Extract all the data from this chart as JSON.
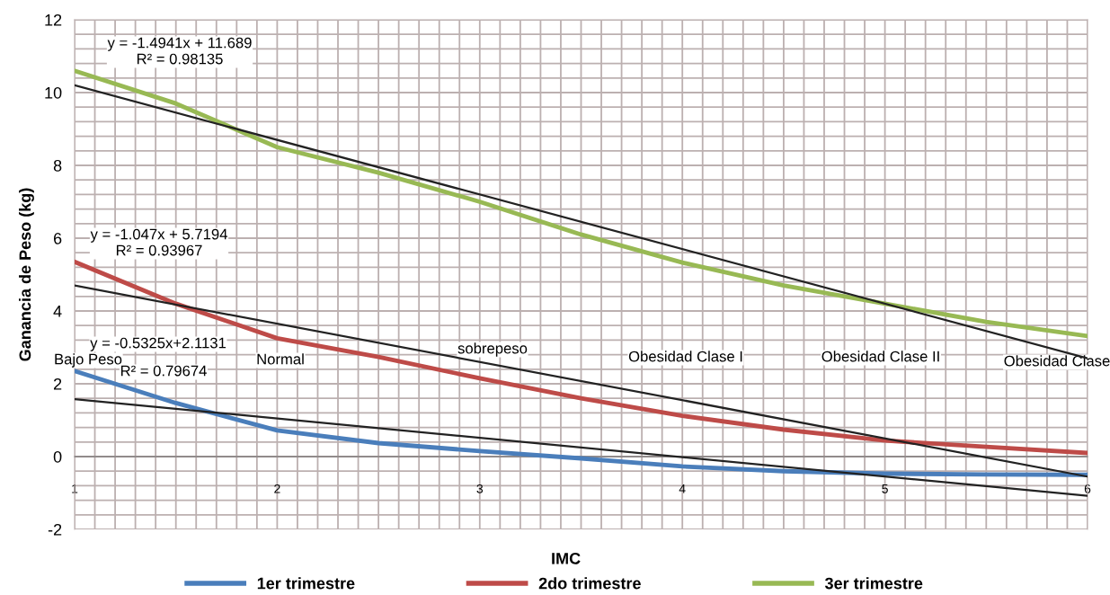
{
  "chart_data": {
    "type": "line",
    "xlabel": "IMC",
    "ylabel": "Ganancia de Peso (kg)",
    "xlim": [
      1,
      6
    ],
    "ylim": [
      -2,
      12
    ],
    "xticks": [
      1,
      2,
      3,
      4,
      5,
      6
    ],
    "yticks": [
      -2,
      0,
      2,
      4,
      6,
      8,
      10,
      12
    ],
    "grid": true,
    "legend": "bottom",
    "series": [
      {
        "name": "1er trimestre",
        "color": "#4a7ebb",
        "x": [
          1,
          1.5,
          2,
          2.5,
          3,
          3.5,
          4,
          4.5,
          5,
          5.5,
          6
        ],
        "values": [
          2.35,
          1.47,
          0.72,
          0.37,
          0.15,
          -0.05,
          -0.27,
          -0.4,
          -0.47,
          -0.49,
          -0.5
        ]
      },
      {
        "name": "2do trimestre",
        "color": "#be4b48",
        "x": [
          1,
          1.5,
          2,
          2.5,
          3,
          3.5,
          4,
          4.5,
          5,
          5.5,
          6
        ],
        "values": [
          5.35,
          4.2,
          3.25,
          2.74,
          2.15,
          1.6,
          1.12,
          0.74,
          0.44,
          0.27,
          0.1
        ]
      },
      {
        "name": "3er trimestre",
        "color": "#98b954",
        "x": [
          1,
          1.5,
          2,
          2.5,
          3,
          3.5,
          4,
          4.5,
          5,
          5.5,
          6
        ],
        "values": [
          10.6,
          9.7,
          8.5,
          7.8,
          7.0,
          6.1,
          5.33,
          4.7,
          4.2,
          3.7,
          3.31
        ]
      },
      {
        "color": "#222222",
        "x": [
          1,
          6
        ],
        "values": [
          1.58,
          -1.08
        ]
      },
      {
        "color": "#222222",
        "x": [
          1,
          6
        ],
        "values": [
          4.7,
          -0.55
        ]
      },
      {
        "color": "#222222",
        "x": [
          1,
          6
        ],
        "values": [
          10.2,
          2.7
        ]
      }
    ],
    "annotations": [
      "y = -1.4941x + 11.689\nR² = 0.98135",
      "y = -1.047x + 5.7194\nR² = 0.93967",
      "y = -0.5325x+2.1131",
      "R² = 0.79674",
      "Bajo Peso",
      "Normal",
      "sobrepeso",
      "Obesidad Clase I",
      "Obesidad Clase II",
      "Obesidad Clase"
    ]
  }
}
